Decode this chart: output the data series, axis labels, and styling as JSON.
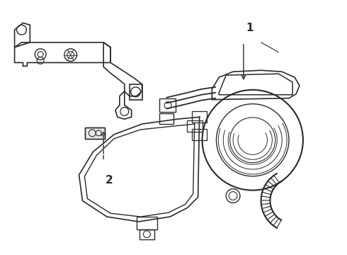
{
  "background_color": "#ffffff",
  "line_color": "#2a2a2a",
  "label_1_text": "1",
  "label_2_text": "2",
  "fig_width": 4.9,
  "fig_height": 3.6,
  "dpi": 100,
  "bracket_color": "#3a3a3a",
  "valve_color": "#2a2a2a"
}
